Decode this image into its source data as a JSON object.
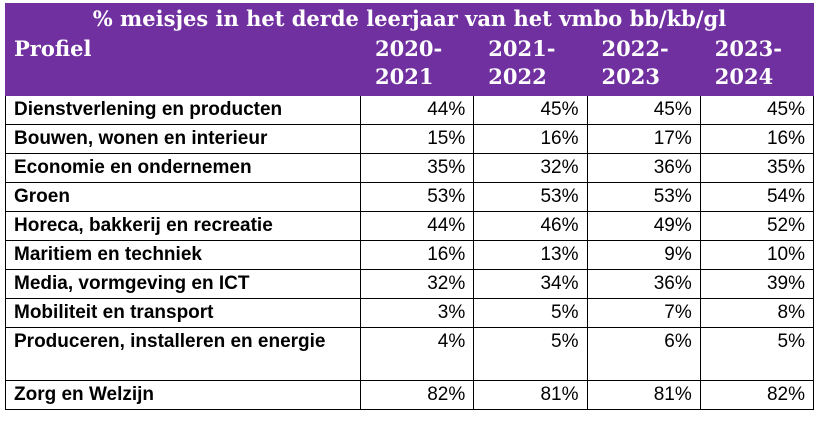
{
  "table": {
    "title": "% meisjes in het derde leerjaar van het vmbo bb/kb/gl",
    "header_label": "Profiel",
    "years": [
      {
        "line1": "2020-",
        "line2": "2021"
      },
      {
        "line1": "2021-",
        "line2": "2022"
      },
      {
        "line1": "2022-",
        "line2": "2023"
      },
      {
        "line1": "2023-",
        "line2": "2024"
      }
    ],
    "header_color": "#7030a0",
    "rows": [
      {
        "label": "Dienstverlening en producten",
        "values": [
          "44%",
          "45%",
          "45%",
          "45%"
        ]
      },
      {
        "label": "Bouwen, wonen en interieur",
        "values": [
          "15%",
          "16%",
          "17%",
          "16%"
        ]
      },
      {
        "label": "Economie en ondernemen",
        "values": [
          "35%",
          "32%",
          "36%",
          "35%"
        ]
      },
      {
        "label": "Groen",
        "values": [
          "53%",
          "53%",
          "53%",
          "54%"
        ]
      },
      {
        "label": "Horeca, bakkerij en recreatie",
        "values": [
          "44%",
          "46%",
          "49%",
          "52%"
        ]
      },
      {
        "label": "Maritiem en techniek",
        "values": [
          "16%",
          "13%",
          "9%",
          "10%"
        ]
      },
      {
        "label": "Media, vormgeving en ICT",
        "values": [
          "32%",
          "34%",
          "36%",
          "39%"
        ]
      },
      {
        "label": "Mobiliteit en transport",
        "values": [
          "3%",
          "5%",
          "7%",
          "8%"
        ]
      },
      {
        "label": "Produceren, installeren en energie",
        "values": [
          "4%",
          "5%",
          "6%",
          "5%"
        ]
      },
      {
        "label": "Zorg en Welzijn",
        "values": [
          "82%",
          "81%",
          "81%",
          "82%"
        ]
      }
    ]
  }
}
